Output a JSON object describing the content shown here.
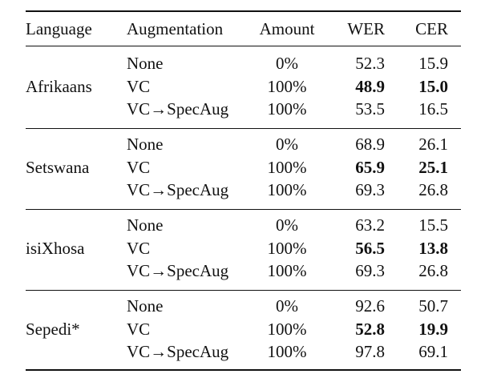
{
  "headers": {
    "language": "Language",
    "augmentation": "Augmentation",
    "amount": "Amount",
    "wer": "WER",
    "cer": "CER"
  },
  "groups": [
    {
      "language": "Afrikaans",
      "rows": [
        {
          "augmentation": "None",
          "amount": "0%",
          "wer": "52.3",
          "cer": "15.9",
          "wer_bold": false,
          "cer_bold": false
        },
        {
          "augmentation": "VC",
          "amount": "100%",
          "wer": "48.9",
          "cer": "15.0",
          "wer_bold": true,
          "cer_bold": true
        },
        {
          "augmentation": "VC→SpecAug",
          "amount": "100%",
          "wer": "53.5",
          "cer": "16.5",
          "wer_bold": false,
          "cer_bold": false
        }
      ]
    },
    {
      "language": "Setswana",
      "rows": [
        {
          "augmentation": "None",
          "amount": "0%",
          "wer": "68.9",
          "cer": "26.1",
          "wer_bold": false,
          "cer_bold": false
        },
        {
          "augmentation": "VC",
          "amount": "100%",
          "wer": "65.9",
          "cer": "25.1",
          "wer_bold": true,
          "cer_bold": true
        },
        {
          "augmentation": "VC→SpecAug",
          "amount": "100%",
          "wer": "69.3",
          "cer": "26.8",
          "wer_bold": false,
          "cer_bold": false
        }
      ]
    },
    {
      "language": "isiXhosa",
      "rows": [
        {
          "augmentation": "None",
          "amount": "0%",
          "wer": "63.2",
          "cer": "15.5",
          "wer_bold": false,
          "cer_bold": false
        },
        {
          "augmentation": "VC",
          "amount": "100%",
          "wer": "56.5",
          "cer": "13.8",
          "wer_bold": true,
          "cer_bold": true
        },
        {
          "augmentation": "VC→SpecAug",
          "amount": "100%",
          "wer": "69.3",
          "cer": "26.8",
          "wer_bold": false,
          "cer_bold": false
        }
      ]
    },
    {
      "language": "Sepedi*",
      "rows": [
        {
          "augmentation": "None",
          "amount": "0%",
          "wer": "92.6",
          "cer": "50.7",
          "wer_bold": false,
          "cer_bold": false
        },
        {
          "augmentation": "VC",
          "amount": "100%",
          "wer": "52.8",
          "cer": "19.9",
          "wer_bold": true,
          "cer_bold": true
        },
        {
          "augmentation": "VC→SpecAug",
          "amount": "100%",
          "wer": "97.8",
          "cer": "69.1",
          "wer_bold": false,
          "cer_bold": false
        }
      ]
    }
  ]
}
